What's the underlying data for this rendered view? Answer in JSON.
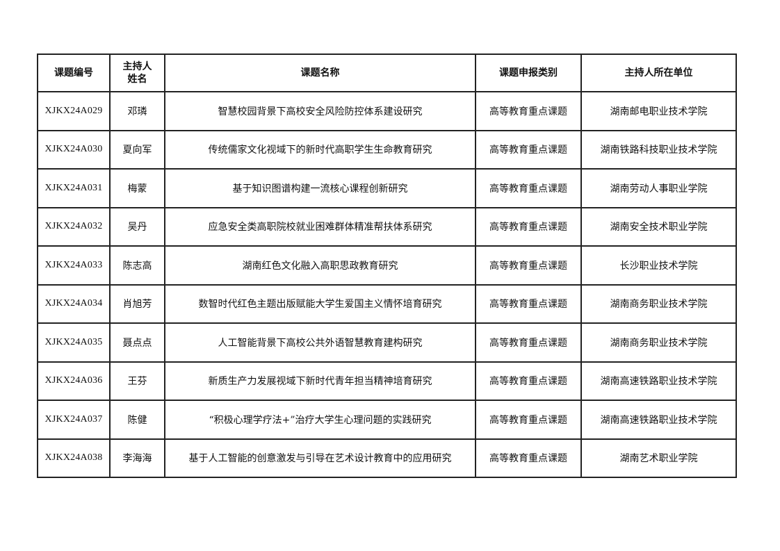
{
  "table": {
    "headers": [
      "课题编号",
      "主持人姓名",
      "课题名称",
      "课题申报类别",
      "主持人所在单位"
    ],
    "header_name_lines": [
      "主持人",
      "姓名"
    ],
    "rows": [
      {
        "code": "XJKX24A029",
        "host": "邓璘",
        "title": "智慧校园背景下高校安全风险防控体系建设研究",
        "category": "高等教育重点课题",
        "unit": "湖南邮电职业技术学院"
      },
      {
        "code": "XJKX24A030",
        "host": "夏向军",
        "title": "传统儒家文化视域下的新时代高职学生生命教育研究",
        "category": "高等教育重点课题",
        "unit": "湖南铁路科技职业技术学院"
      },
      {
        "code": "XJKX24A031",
        "host": "梅蒙",
        "title": "基于知识图谱构建一流核心课程创新研究",
        "category": "高等教育重点课题",
        "unit": "湖南劳动人事职业学院"
      },
      {
        "code": "XJKX24A032",
        "host": "吴丹",
        "title": "应急安全类高职院校就业困难群体精准帮扶体系研究",
        "category": "高等教育重点课题",
        "unit": "湖南安全技术职业学院"
      },
      {
        "code": "XJKX24A033",
        "host": "陈志高",
        "title": "湖南红色文化融入高职思政教育研究",
        "category": "高等教育重点课题",
        "unit": "长沙职业技术学院"
      },
      {
        "code": "XJKX24A034",
        "host": "肖旭芳",
        "title": "数智时代红色主题出版赋能大学生爱国主义情怀培育研究",
        "category": "高等教育重点课题",
        "unit": "湖南商务职业技术学院"
      },
      {
        "code": "XJKX24A035",
        "host": "聂点点",
        "title": "人工智能背景下高校公共外语智慧教育建构研究",
        "category": "高等教育重点课题",
        "unit": "湖南商务职业技术学院"
      },
      {
        "code": "XJKX24A036",
        "host": "王芬",
        "title": "新质生产力发展视域下新时代青年担当精神培育研究",
        "category": "高等教育重点课题",
        "unit": "湖南高速铁路职业技术学院"
      },
      {
        "code": "XJKX24A037",
        "host": "陈健",
        "title": "“积极心理学疗法+”治疗大学生心理问题的实践研究",
        "category": "高等教育重点课题",
        "unit": "湖南高速铁路职业技术学院"
      },
      {
        "code": "XJKX24A038",
        "host": "李海海",
        "title": "基于人工智能的创意激发与引导在艺术设计教育中的应用研究",
        "category": "高等教育重点课题",
        "unit": "湖南艺术职业学院"
      }
    ]
  }
}
